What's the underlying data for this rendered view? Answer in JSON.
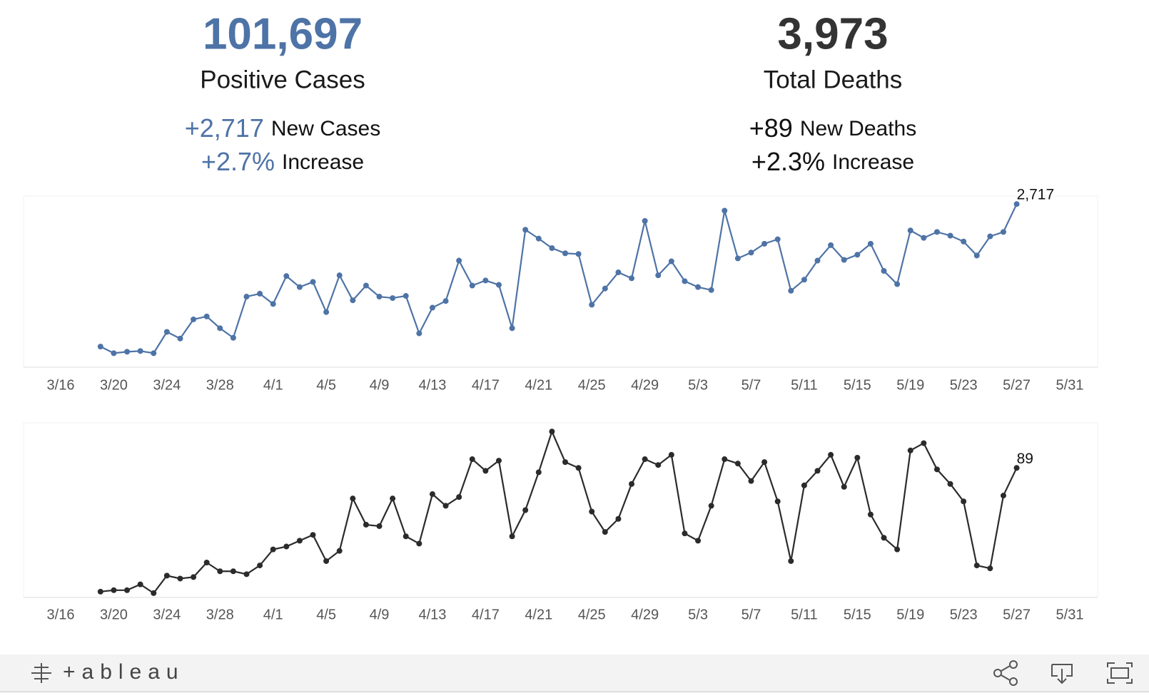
{
  "kpis": [
    {
      "value": "101,697",
      "label": "Positive Cases",
      "change": "+2,717",
      "change_label": "New Cases",
      "pct": "+2.7%",
      "pct_label": "Increase"
    },
    {
      "value": "3,973",
      "label": "Total Deaths",
      "change": "+89",
      "change_label": "New Deaths",
      "pct": "+2.3%",
      "pct_label": "Increase"
    }
  ],
  "chart_data": [
    {
      "type": "line",
      "color": "#4e73a6",
      "ylim": [
        0,
        2850
      ],
      "categories": [
        "3/16",
        null,
        null,
        null,
        "3/20",
        null,
        null,
        null,
        "3/24",
        null,
        null,
        null,
        "3/28",
        null,
        null,
        null,
        "4/1",
        null,
        null,
        null,
        "4/5",
        null,
        null,
        null,
        "4/9",
        null,
        null,
        null,
        "4/13",
        null,
        null,
        null,
        "4/17",
        null,
        null,
        null,
        "4/21",
        null,
        null,
        null,
        "4/25",
        null,
        null,
        null,
        "4/29",
        null,
        null,
        null,
        "5/3",
        null,
        null,
        null,
        "5/7",
        null,
        null,
        null,
        "5/11",
        null,
        null,
        null,
        "5/15",
        null,
        null,
        null,
        "5/19",
        null,
        null,
        null,
        "5/23",
        null,
        null,
        null,
        "5/27",
        null,
        null,
        null,
        "5/31"
      ],
      "values": [
        null,
        null,
        null,
        343,
        233,
        257,
        269,
        233,
        588,
        477,
        796,
        845,
        649,
        490,
        1175,
        1224,
        1053,
        1518,
        1334,
        1420,
        918,
        1530,
        1114,
        1359,
        1175,
        1151,
        1187,
        563,
        991,
        1102,
        1775,
        1359,
        1444,
        1371,
        649,
        2289,
        2142,
        1983,
        1897,
        1885,
        1040,
        1310,
        1579,
        1481,
        2436,
        1530,
        1763,
        1432,
        1334,
        1285,
        2607,
        1812,
        1909,
        2056,
        2130,
        1273,
        1457,
        1775,
        2032,
        1787,
        1873,
        2056,
        1603,
        1383,
        2277,
        2154,
        2252,
        2191,
        2093,
        1860,
        2179,
        2252,
        2717,
        null,
        null,
        null,
        null
      ],
      "value_labels": [
        null,
        null,
        null,
        null,
        null,
        null,
        null,
        null,
        null,
        null,
        null,
        null,
        null,
        null,
        null,
        null,
        null,
        null,
        null,
        null,
        null,
        null,
        null,
        null,
        null,
        null,
        null,
        null,
        null,
        null,
        null,
        null,
        null,
        null,
        null,
        null,
        null,
        null,
        null,
        null,
        null,
        null,
        null,
        null,
        null,
        null,
        null,
        null,
        null,
        null,
        null,
        null,
        null,
        null,
        null,
        null,
        null,
        null,
        null,
        null,
        null,
        null,
        null,
        null,
        null,
        null,
        null,
        null,
        null,
        null,
        null,
        null,
        "2,717",
        null,
        null,
        null,
        null
      ]
    },
    {
      "type": "line",
      "color": "#2b2b2b",
      "ylim": [
        0,
        120
      ],
      "categories": [
        "3/16",
        null,
        null,
        null,
        "3/20",
        null,
        null,
        null,
        "3/24",
        null,
        null,
        null,
        "3/28",
        null,
        null,
        null,
        "4/1",
        null,
        null,
        null,
        "4/5",
        null,
        null,
        null,
        "4/9",
        null,
        null,
        null,
        "4/13",
        null,
        null,
        null,
        "4/17",
        null,
        null,
        null,
        "4/21",
        null,
        null,
        null,
        "4/25",
        null,
        null,
        null,
        "4/29",
        null,
        null,
        null,
        "5/3",
        null,
        null,
        null,
        "5/7",
        null,
        null,
        null,
        "5/11",
        null,
        null,
        null,
        "5/15",
        null,
        null,
        null,
        "5/19",
        null,
        null,
        null,
        "5/23",
        null,
        null,
        null,
        "5/27",
        null,
        null,
        null,
        "5/31"
      ],
      "values": [
        null,
        null,
        null,
        4,
        5,
        5,
        9,
        3,
        15,
        13,
        14,
        24,
        18,
        18,
        16,
        22,
        33,
        35,
        39,
        43,
        25,
        32,
        68,
        50,
        49,
        68,
        42,
        37,
        71,
        63,
        69,
        95,
        87,
        94,
        42,
        60,
        86,
        114,
        93,
        89,
        59,
        45,
        54,
        78,
        95,
        91,
        98,
        44,
        39,
        63,
        95,
        92,
        80,
        93,
        66,
        25,
        77,
        87,
        98,
        76,
        96,
        57,
        41,
        33,
        101,
        106,
        88,
        78,
        66,
        22,
        20,
        70,
        89,
        null,
        null,
        null,
        null
      ],
      "value_labels": [
        null,
        null,
        null,
        null,
        null,
        null,
        null,
        null,
        null,
        null,
        null,
        null,
        null,
        null,
        null,
        null,
        null,
        null,
        null,
        null,
        null,
        null,
        null,
        null,
        null,
        null,
        null,
        null,
        null,
        null,
        null,
        null,
        null,
        null,
        null,
        null,
        null,
        null,
        null,
        null,
        null,
        null,
        null,
        null,
        null,
        null,
        null,
        null,
        null,
        null,
        null,
        null,
        null,
        null,
        null,
        null,
        null,
        null,
        null,
        null,
        null,
        null,
        null,
        null,
        null,
        null,
        null,
        null,
        null,
        null,
        null,
        null,
        "89",
        null,
        null,
        null,
        null
      ]
    }
  ],
  "footer": {
    "brand": "+ableau"
  }
}
